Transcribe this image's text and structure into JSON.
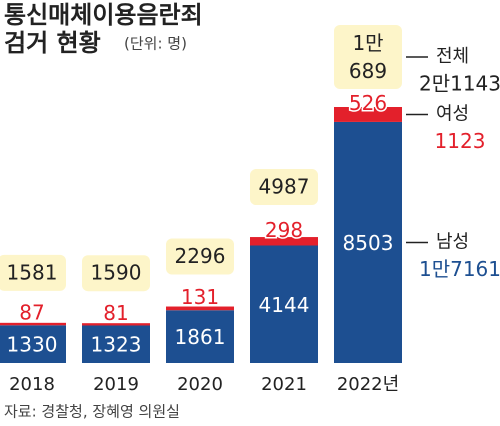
{
  "chart_data": {
    "type": "bar",
    "title": "통신매체이용음란죄 검거 현황",
    "subtitle": "(단위: 명)",
    "source": "자료: 경찰청, 장혜영 의원실",
    "categories": [
      "2018",
      "2019",
      "2020",
      "2021",
      "2022년"
    ],
    "stacked": true,
    "series": [
      {
        "name": "남성",
        "color": "#1d4f91",
        "values": [
          1330,
          1323,
          1861,
          4144,
          8503
        ],
        "total": {
          "value": 17161,
          "label": "1만7161"
        }
      },
      {
        "name": "여성",
        "color": "#e3202b",
        "values": [
          87,
          81,
          131,
          298,
          526
        ],
        "total": {
          "value": 1123,
          "label": "1123"
        }
      }
    ],
    "totals": {
      "name": "전체",
      "color": "#fdf5c9",
      "values": [
        1581,
        1590,
        2296,
        4987,
        10689
      ],
      "value_labels": [
        "1581",
        "1590",
        "2296",
        "4987",
        "1만 689"
      ],
      "total": {
        "value": 21143,
        "label": "2만1143"
      }
    }
  }
}
